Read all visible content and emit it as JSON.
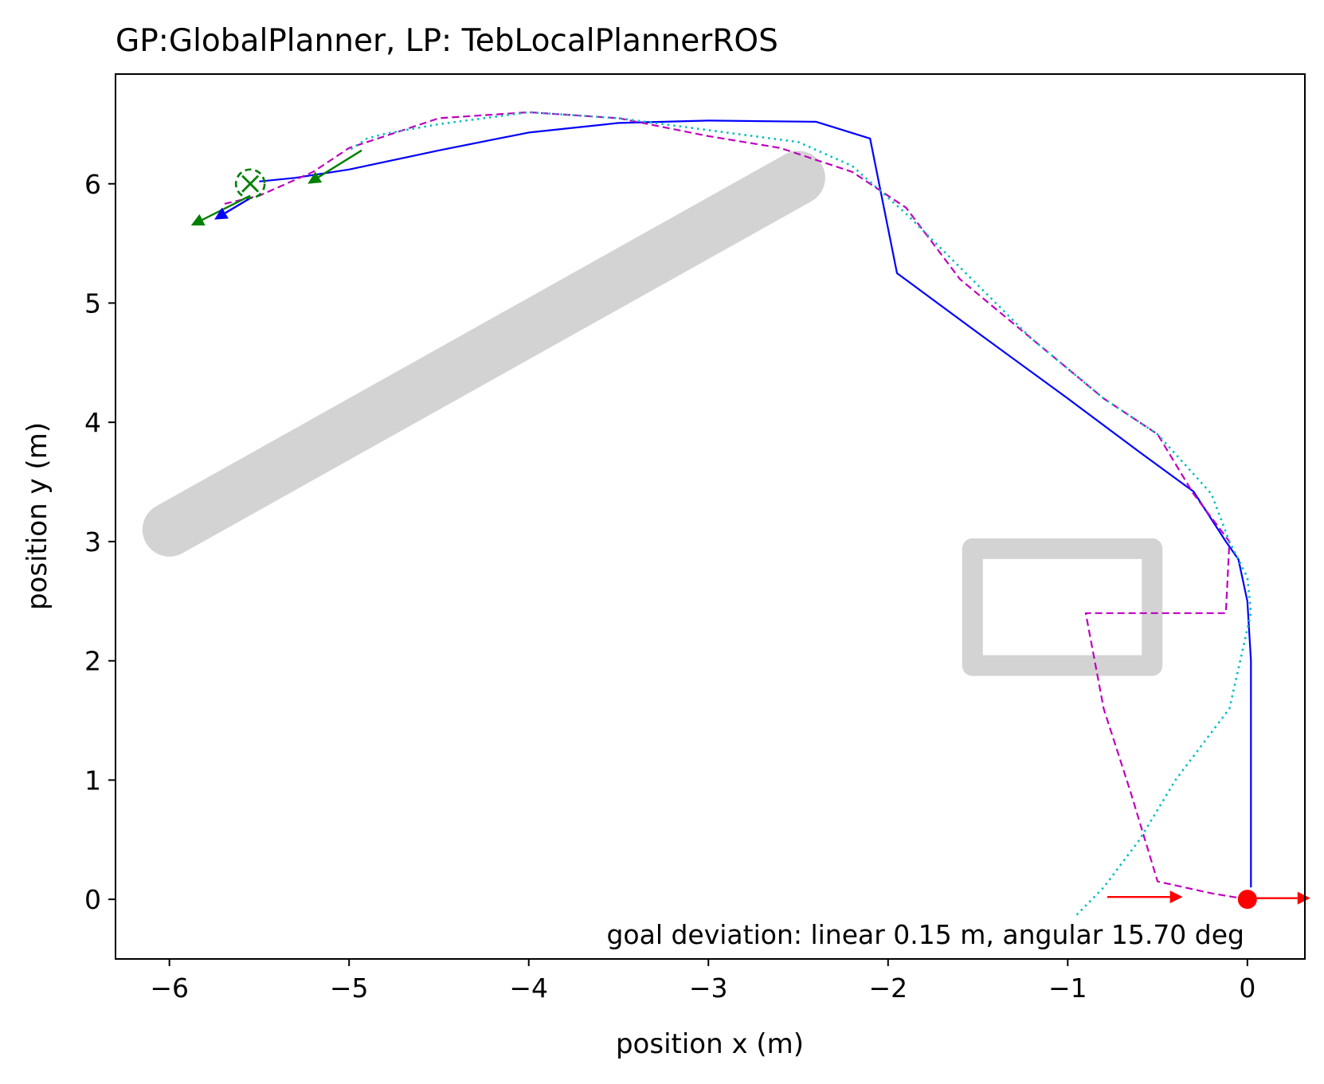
{
  "chart_data": {
    "type": "line",
    "title": "GP:GlobalPlanner, LP: TebLocalPlannerROS",
    "xlabel": "position x (m)",
    "ylabel": "position y (m)",
    "xlim": [
      -6.3,
      0.32
    ],
    "ylim": [
      -0.5,
      6.92
    ],
    "xticks": [
      -6,
      -5,
      -4,
      -3,
      -2,
      -1,
      0
    ],
    "xtick_labels": [
      "−6",
      "−5",
      "−4",
      "−3",
      "−2",
      "−1",
      "0"
    ],
    "yticks": [
      0,
      1,
      2,
      3,
      4,
      5,
      6
    ],
    "ytick_labels": [
      "0",
      "1",
      "2",
      "3",
      "4",
      "5",
      "6"
    ],
    "grid": false,
    "annotation": "goal deviation: linear 0.15 m, angular 15.70 deg",
    "colors": {
      "robot_path": "#0000ff",
      "plan_dashed": "#bf00bf",
      "plan_dotted": "#00bfbf",
      "goal": "#008000",
      "start": "#ff0000",
      "obstacles": "#d3d3d3"
    },
    "series": [
      {
        "style": "solid",
        "x": [
          0.02,
          0.02,
          0.02,
          0.0,
          -0.05,
          -0.12,
          -0.3,
          -0.6,
          -1.0,
          -1.5,
          -1.95,
          -2.1,
          -2.4,
          -3.0,
          -3.5,
          -4.0,
          -4.5,
          -5.0,
          -5.3,
          -5.5
        ],
        "y": [
          0.1,
          1.0,
          2.0,
          2.5,
          2.85,
          3.0,
          3.42,
          3.75,
          4.2,
          4.75,
          5.25,
          6.38,
          6.52,
          6.53,
          6.51,
          6.43,
          6.28,
          6.12,
          6.05,
          6.02
        ]
      },
      {
        "style": "dashed",
        "x": [
          0.0,
          -0.2,
          -0.5,
          -0.65,
          -0.8,
          -0.9,
          -0.12,
          -0.1,
          -0.3,
          -0.5,
          -0.8,
          -1.2,
          -1.6,
          -1.9,
          -2.2,
          -2.6,
          -3.0,
          -3.5,
          -4.0,
          -4.5,
          -4.8,
          -5.0,
          -5.2,
          -5.5,
          -5.7
        ],
        "y": [
          0.0,
          0.05,
          0.15,
          0.9,
          1.6,
          2.4,
          2.4,
          3.0,
          3.4,
          3.9,
          4.2,
          4.7,
          5.2,
          5.8,
          6.1,
          6.3,
          6.4,
          6.55,
          6.6,
          6.55,
          6.4,
          6.3,
          6.1,
          5.9,
          5.83
        ]
      },
      {
        "style": "dotted",
        "x": [
          -0.95,
          -0.8,
          -0.6,
          -0.4,
          -0.1,
          0.02,
          0.0,
          -0.1,
          -0.2,
          -0.5,
          -0.8,
          -1.2,
          -1.6,
          -1.9,
          -2.2,
          -2.5,
          -3.0,
          -3.5,
          -4.0,
          -4.5,
          -4.8,
          -4.9,
          -5.0
        ],
        "y": [
          -0.13,
          0.1,
          0.5,
          1.0,
          1.6,
          2.4,
          2.7,
          3.0,
          3.4,
          3.9,
          4.2,
          4.7,
          5.3,
          5.75,
          6.15,
          6.35,
          6.45,
          6.55,
          6.6,
          6.5,
          6.42,
          6.38,
          6.28
        ]
      }
    ],
    "start": {
      "x": 0.0,
      "y": 0.0
    },
    "start_arrows": [
      {
        "x": -0.78,
        "y": 0.02,
        "dx": 0.42,
        "dy": 0.0
      },
      {
        "x": 0.0,
        "y": 0.01,
        "dx": 0.35,
        "dy": 0.0
      }
    ],
    "goal": {
      "x": -5.55,
      "y": 6.0
    },
    "goal_arrows": [
      {
        "x": -4.93,
        "y": 6.28,
        "dx": -0.3,
        "dy": -0.28,
        "color": "#008000"
      },
      {
        "x": -5.55,
        "y": 5.9,
        "dx": -0.33,
        "dy": -0.25,
        "color": "#008000"
      },
      {
        "x": -5.55,
        "y": 5.88,
        "dx": -0.2,
        "dy": -0.18,
        "color": "#0000ff"
      }
    ],
    "obstacles": [
      {
        "shape": "line",
        "x1": -6.0,
        "y1": 3.1,
        "x2": -2.5,
        "y2": 6.05,
        "width": 0.3
      },
      {
        "shape": "rect",
        "x1": -1.53,
        "y1": 1.96,
        "x2": -0.53,
        "y2": 2.94
      }
    ]
  }
}
